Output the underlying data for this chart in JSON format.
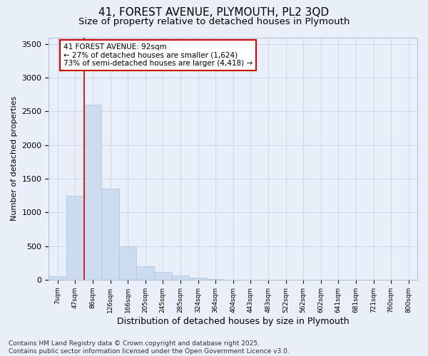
{
  "title_line1": "41, FOREST AVENUE, PLYMOUTH, PL2 3QD",
  "title_line2": "Size of property relative to detached houses in Plymouth",
  "xlabel": "Distribution of detached houses by size in Plymouth",
  "ylabel": "Number of detached properties",
  "categories": [
    "7sqm",
    "47sqm",
    "86sqm",
    "126sqm",
    "166sqm",
    "205sqm",
    "245sqm",
    "285sqm",
    "324sqm",
    "364sqm",
    "404sqm",
    "443sqm",
    "483sqm",
    "522sqm",
    "562sqm",
    "602sqm",
    "641sqm",
    "681sqm",
    "721sqm",
    "760sqm",
    "800sqm"
  ],
  "values": [
    50,
    1250,
    2600,
    1350,
    500,
    200,
    110,
    60,
    30,
    10,
    2,
    0,
    0,
    0,
    0,
    0,
    0,
    0,
    0,
    0,
    0
  ],
  "bar_color": "#ccdcee",
  "bar_edgecolor": "#aac4de",
  "vline_x_index": 2,
  "vline_color": "#cc0000",
  "annotation_text_line1": "41 FOREST AVENUE: 92sqm",
  "annotation_text_line2": "← 27% of detached houses are smaller (1,624)",
  "annotation_text_line3": "73% of semi-detached houses are larger (4,418) →",
  "annotation_box_facecolor": "#ffffff",
  "annotation_box_edgecolor": "#cc0000",
  "annotation_fontsize": 7.5,
  "ylim_max": 3600,
  "yticks": [
    0,
    500,
    1000,
    1500,
    2000,
    2500,
    3000,
    3500
  ],
  "grid_color": "#c8d4e4",
  "bg_color": "#e8eff8",
  "footer_line1": "Contains HM Land Registry data © Crown copyright and database right 2025.",
  "footer_line2": "Contains public sector information licensed under the Open Government Licence v3.0.",
  "footer_fontsize": 6.5,
  "title_fontsize1": 11,
  "title_fontsize2": 9.5,
  "ylabel_fontsize": 8,
  "xlabel_fontsize": 9
}
